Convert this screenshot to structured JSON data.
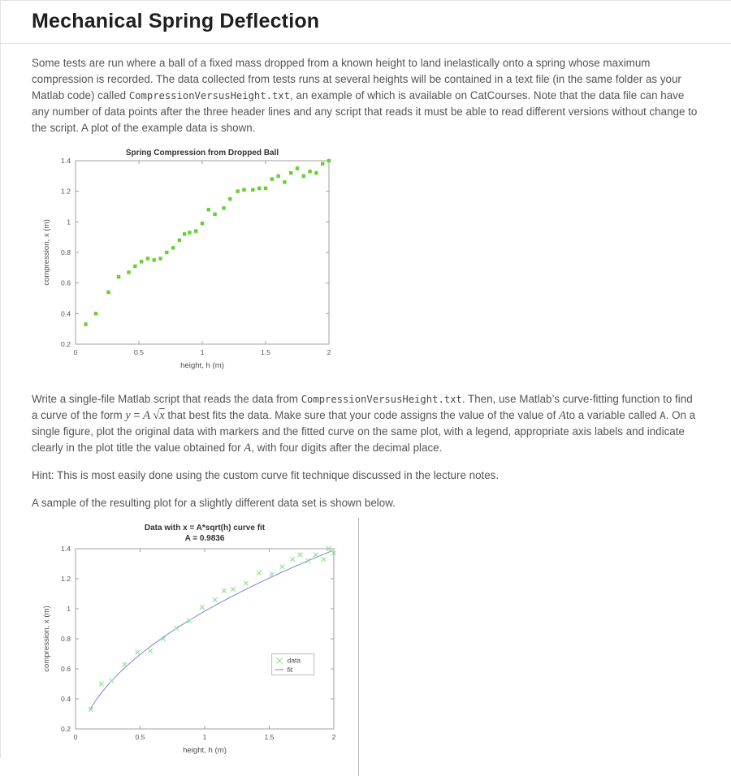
{
  "page": {
    "title": "Mechanical Spring Deflection"
  },
  "paragraphs": {
    "intro": [
      {
        "s": "text",
        "t": "Some tests are run where a ball of a fixed mass dropped from a known height to land inelastically onto a spring whose maximum compression is recorded. The data collected from tests runs at several heights will be contained in a text file (in the same folder as your Matlab code) called "
      },
      {
        "s": "code",
        "t": "CompressionVersusHeight.txt"
      },
      {
        "s": "text",
        "t": ", an example of which is available on CatCourses. Note that the data file can have any number of data points after the three header lines and any script that reads it must be able to read different versions without change to the script. A plot of the example data is shown."
      }
    ],
    "task": [
      {
        "s": "text",
        "t": "Write a single-file Matlab script that reads the data from "
      },
      {
        "s": "code",
        "t": "CompressionVersusHeight.txt"
      },
      {
        "s": "text",
        "t": ". Then, use Matlab’s curve-fitting function to find a curve of the form "
      },
      {
        "s": "i",
        "t": "y"
      },
      {
        "s": "text",
        "t": " = "
      },
      {
        "s": "i",
        "t": "A "
      },
      {
        "s": "sqrt",
        "t": "x"
      },
      {
        "s": "text",
        "t": " that best fits the data. Make sure that your code assigns the value of the value of "
      },
      {
        "s": "i",
        "t": "A"
      },
      {
        "s": "text",
        "t": "to a variable called "
      },
      {
        "s": "code",
        "t": "A"
      },
      {
        "s": "text",
        "t": ". On a single figure, plot the original data with markers and the fitted curve on the same plot, with a legend, appropriate axis labels and indicate clearly in the plot title the value obtained for "
      },
      {
        "s": "i",
        "t": "A"
      },
      {
        "s": "text",
        "t": ", with four digits after the decimal place."
      }
    ],
    "hint": [
      {
        "s": "text",
        "t": "Hint: This is most easily done using the custom curve fit technique discussed in the lecture notes."
      }
    ],
    "sample": [
      {
        "s": "text",
        "t": "A sample of the resulting plot for a slightly different data set is shown below."
      }
    ]
  },
  "chart_data": [
    {
      "type": "scatter",
      "title": "Spring Compression from Dropped Ball",
      "xlabel": "height, h (m)",
      "ylabel": "compression, x (m)",
      "xlim": [
        0,
        2
      ],
      "ylim": [
        0.2,
        1.4
      ],
      "xticks": [
        0,
        0.5,
        1,
        1.5,
        2
      ],
      "yticks": [
        0.2,
        0.4,
        0.6,
        0.8,
        1,
        1.2,
        1.4
      ],
      "marker": "square",
      "marker_color": "#66cf33",
      "axis_color": "#a0a0a0",
      "points": [
        [
          0.08,
          0.33
        ],
        [
          0.16,
          0.4
        ],
        [
          0.26,
          0.54
        ],
        [
          0.34,
          0.64
        ],
        [
          0.42,
          0.67
        ],
        [
          0.47,
          0.71
        ],
        [
          0.52,
          0.74
        ],
        [
          0.57,
          0.76
        ],
        [
          0.62,
          0.75
        ],
        [
          0.67,
          0.76
        ],
        [
          0.72,
          0.8
        ],
        [
          0.77,
          0.83
        ],
        [
          0.82,
          0.88
        ],
        [
          0.86,
          0.92
        ],
        [
          0.9,
          0.93
        ],
        [
          0.95,
          0.94
        ],
        [
          1.0,
          0.99
        ],
        [
          1.05,
          1.08
        ],
        [
          1.1,
          1.05
        ],
        [
          1.17,
          1.09
        ],
        [
          1.22,
          1.15
        ],
        [
          1.28,
          1.2
        ],
        [
          1.33,
          1.21
        ],
        [
          1.4,
          1.21
        ],
        [
          1.45,
          1.22
        ],
        [
          1.5,
          1.22
        ],
        [
          1.55,
          1.28
        ],
        [
          1.6,
          1.3
        ],
        [
          1.65,
          1.26
        ],
        [
          1.7,
          1.32
        ],
        [
          1.75,
          1.35
        ],
        [
          1.8,
          1.3
        ],
        [
          1.85,
          1.33
        ],
        [
          1.9,
          1.32
        ],
        [
          1.95,
          1.38
        ],
        [
          2.0,
          1.4
        ]
      ]
    },
    {
      "type": "scatter",
      "title": "Data with x = A*sqrt(h) curve fit",
      "subtitle": "A = 0.9836",
      "xlabel": "height, h (m)",
      "ylabel": "compression, x (m)",
      "xlim": [
        0,
        2
      ],
      "ylim": [
        0.2,
        1.4
      ],
      "xticks": [
        0,
        0.5,
        1,
        1.5,
        2
      ],
      "yticks": [
        0.2,
        0.4,
        0.6,
        0.8,
        1,
        1.2,
        1.4
      ],
      "marker": "x",
      "marker_color": "#92e292",
      "axis_color": "#a0a0a0",
      "fit": {
        "A": 0.9836,
        "from": 0.11,
        "color": "#8080dc"
      },
      "legend": {
        "x": 1.52,
        "y": 0.7,
        "data_label": "data",
        "fit_label": "fit"
      },
      "points": [
        [
          0.12,
          0.33
        ],
        [
          0.2,
          0.5
        ],
        [
          0.28,
          0.52
        ],
        [
          0.38,
          0.63
        ],
        [
          0.48,
          0.71
        ],
        [
          0.58,
          0.72
        ],
        [
          0.68,
          0.8
        ],
        [
          0.78,
          0.87
        ],
        [
          0.88,
          0.92
        ],
        [
          0.98,
          1.01
        ],
        [
          1.08,
          1.06
        ],
        [
          1.15,
          1.12
        ],
        [
          1.22,
          1.13
        ],
        [
          1.32,
          1.17
        ],
        [
          1.42,
          1.24
        ],
        [
          1.52,
          1.23
        ],
        [
          1.6,
          1.28
        ],
        [
          1.68,
          1.33
        ],
        [
          1.74,
          1.36
        ],
        [
          1.8,
          1.32
        ],
        [
          1.86,
          1.36
        ],
        [
          1.92,
          1.33
        ],
        [
          1.96,
          1.4
        ],
        [
          2.0,
          1.37
        ]
      ]
    }
  ]
}
